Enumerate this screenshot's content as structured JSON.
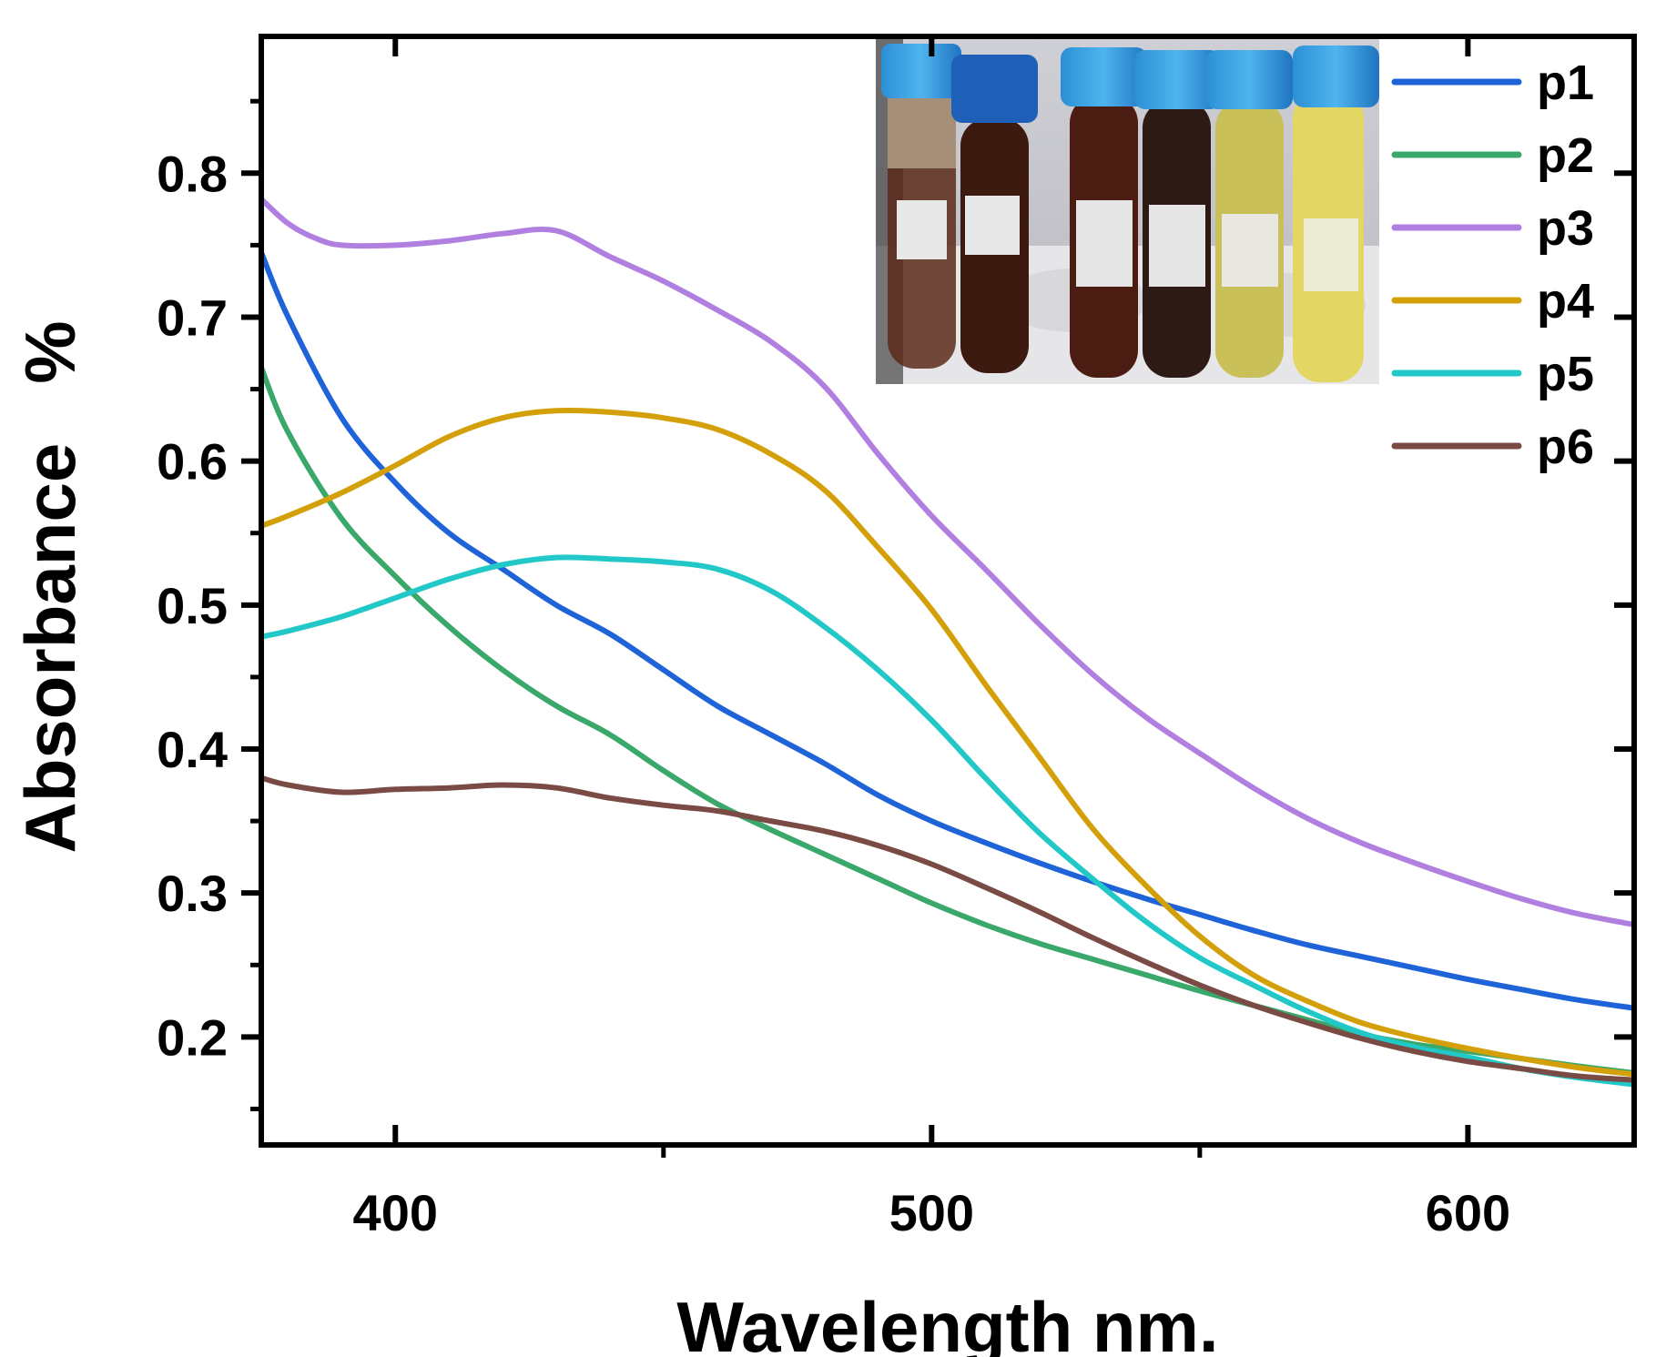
{
  "chart_data": {
    "type": "line",
    "xlabel": "Wavelength nm.",
    "ylabel": "Absorbance   %",
    "xlim": [
      375,
      631
    ],
    "ylim": [
      0.125,
      0.895
    ],
    "xticks": [
      400,
      500,
      600
    ],
    "xtick_labels": [
      "400",
      "500",
      "600"
    ],
    "yticks": [
      0.2,
      0.3,
      0.4,
      0.5,
      0.6,
      0.7,
      0.8
    ],
    "ytick_labels": [
      "0.2",
      "0.3",
      "0.4",
      "0.5",
      "0.6",
      "0.7",
      "0.8"
    ],
    "grid": false,
    "legend_position": "top-right",
    "inset": "photograph of six capped sample tubes with brown to yellow solutions",
    "series": [
      {
        "name": "p1",
        "color": "#1f63d9",
        "x": [
          375,
          380,
          390,
          400,
          410,
          420,
          430,
          440,
          450,
          460,
          470,
          480,
          490,
          500,
          510,
          520,
          530,
          540,
          550,
          560,
          570,
          580,
          590,
          600,
          610,
          620,
          631
        ],
        "y": [
          0.745,
          0.7,
          0.63,
          0.585,
          0.55,
          0.525,
          0.5,
          0.48,
          0.455,
          0.43,
          0.41,
          0.39,
          0.368,
          0.35,
          0.335,
          0.321,
          0.308,
          0.296,
          0.285,
          0.274,
          0.264,
          0.256,
          0.248,
          0.24,
          0.233,
          0.226,
          0.22
        ]
      },
      {
        "name": "p2",
        "color": "#3aa86a",
        "x": [
          375,
          380,
          390,
          400,
          410,
          420,
          430,
          440,
          450,
          460,
          470,
          480,
          490,
          500,
          510,
          520,
          530,
          540,
          550,
          560,
          570,
          580,
          590,
          600,
          610,
          620,
          631
        ],
        "y": [
          0.665,
          0.62,
          0.56,
          0.52,
          0.485,
          0.455,
          0.43,
          0.41,
          0.385,
          0.362,
          0.344,
          0.327,
          0.31,
          0.293,
          0.278,
          0.265,
          0.254,
          0.243,
          0.232,
          0.222,
          0.212,
          0.202,
          0.195,
          0.19,
          0.185,
          0.18,
          0.175
        ]
      },
      {
        "name": "p3",
        "color": "#b07fe0",
        "x": [
          375,
          380,
          385,
          390,
          400,
          410,
          420,
          430,
          440,
          450,
          460,
          470,
          480,
          490,
          500,
          510,
          520,
          530,
          540,
          550,
          560,
          570,
          580,
          590,
          600,
          610,
          620,
          631
        ],
        "y": [
          0.782,
          0.765,
          0.755,
          0.75,
          0.75,
          0.753,
          0.758,
          0.76,
          0.742,
          0.725,
          0.705,
          0.683,
          0.652,
          0.605,
          0.562,
          0.525,
          0.487,
          0.452,
          0.422,
          0.397,
          0.373,
          0.352,
          0.335,
          0.321,
          0.308,
          0.296,
          0.286,
          0.278
        ]
      },
      {
        "name": "p4",
        "color": "#d4a00a",
        "x": [
          375,
          380,
          390,
          400,
          410,
          420,
          430,
          440,
          450,
          460,
          470,
          480,
          490,
          500,
          510,
          520,
          530,
          540,
          550,
          560,
          570,
          580,
          590,
          600,
          610,
          620,
          631
        ],
        "y": [
          0.555,
          0.562,
          0.578,
          0.597,
          0.617,
          0.63,
          0.635,
          0.634,
          0.63,
          0.622,
          0.605,
          0.58,
          0.54,
          0.497,
          0.445,
          0.395,
          0.345,
          0.305,
          0.27,
          0.243,
          0.225,
          0.21,
          0.2,
          0.192,
          0.185,
          0.179,
          0.174
        ]
      },
      {
        "name": "p5",
        "color": "#22c8c8",
        "x": [
          375,
          380,
          390,
          400,
          410,
          420,
          430,
          440,
          450,
          460,
          470,
          480,
          490,
          500,
          510,
          520,
          530,
          540,
          550,
          560,
          570,
          580,
          590,
          600,
          610,
          620,
          631
        ],
        "y": [
          0.478,
          0.482,
          0.492,
          0.505,
          0.518,
          0.528,
          0.533,
          0.532,
          0.53,
          0.525,
          0.51,
          0.485,
          0.455,
          0.42,
          0.38,
          0.342,
          0.31,
          0.28,
          0.255,
          0.236,
          0.218,
          0.203,
          0.193,
          0.186,
          0.178,
          0.172,
          0.167
        ]
      },
      {
        "name": "p6",
        "color": "#7a4a44",
        "x": [
          375,
          380,
          390,
          400,
          410,
          420,
          430,
          440,
          450,
          460,
          470,
          480,
          490,
          500,
          510,
          520,
          530,
          540,
          550,
          560,
          570,
          580,
          590,
          600,
          610,
          620,
          631
        ],
        "y": [
          0.38,
          0.375,
          0.37,
          0.372,
          0.373,
          0.375,
          0.373,
          0.366,
          0.361,
          0.357,
          0.35,
          0.343,
          0.333,
          0.32,
          0.304,
          0.287,
          0.269,
          0.252,
          0.236,
          0.222,
          0.21,
          0.199,
          0.19,
          0.183,
          0.178,
          0.173,
          0.17
        ]
      }
    ]
  }
}
